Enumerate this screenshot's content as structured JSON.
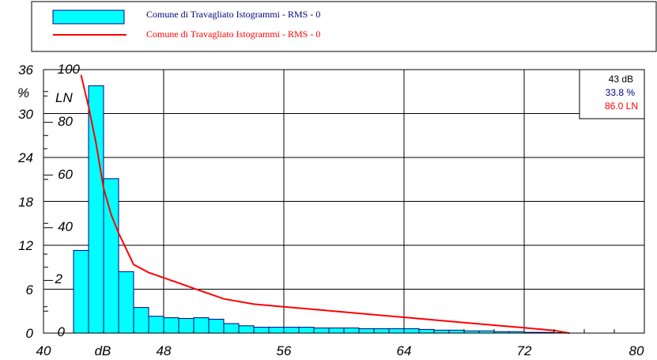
{
  "legend": {
    "items": [
      {
        "label": "Comune di Travagliato Istogrammi  - RMS - 0",
        "color": "#000080",
        "symbol": "bar"
      },
      {
        "label": "Comune di Travagliato Istogrammi  - RMS - 0",
        "color": "#ff0000",
        "symbol": "line"
      }
    ]
  },
  "colors": {
    "bar_fill": "#00ffff",
    "line": "#ff0000",
    "percent_text": "#000080",
    "ln_text": "#ff0000"
  },
  "readout": {
    "db": "43 dB",
    "percent": "33.8 %",
    "ln": "86.0 LN"
  },
  "axes": {
    "x_unit": "dB",
    "y_left_unit": "%",
    "y_inner_unit": "LN",
    "x_ticks": [
      "40",
      "48",
      "56",
      "64",
      "72",
      "80"
    ],
    "y_ticks": [
      "0",
      "6",
      "12",
      "18",
      "24",
      "30",
      "36"
    ],
    "ln_ticks": [
      "0",
      "2",
      "40",
      "60",
      "80",
      "100"
    ]
  },
  "chart_data": {
    "type": "bar",
    "xlabel": "dB",
    "ylabel": "%",
    "xlim": [
      40,
      80
    ],
    "ylim": [
      0,
      36
    ],
    "y2lim": [
      0,
      100
    ],
    "grid": true,
    "legend_position": "top",
    "series": [
      {
        "name": "Comune di Travagliato Istogrammi  - RMS - 0",
        "type": "bar",
        "bin_width": 1,
        "x": [
          42,
          43,
          44,
          45,
          46,
          47,
          48,
          49,
          50,
          51,
          52,
          53,
          54,
          55,
          56,
          57,
          58,
          59,
          60,
          61,
          62,
          63,
          64,
          65,
          66,
          67,
          68,
          69,
          70,
          71,
          72,
          73,
          74
        ],
        "values": [
          11.3,
          33.8,
          21.1,
          8.4,
          3.5,
          2.3,
          2.1,
          2.0,
          2.1,
          1.9,
          1.3,
          1.0,
          0.8,
          0.8,
          0.8,
          0.8,
          0.7,
          0.7,
          0.7,
          0.6,
          0.6,
          0.6,
          0.6,
          0.5,
          0.4,
          0.4,
          0.3,
          0.3,
          0.2,
          0.2,
          0.1,
          0.1,
          0.05
        ]
      },
      {
        "name": "Comune di Travagliato Istogrammi  - RMS - 0",
        "type": "line",
        "axis": "LN",
        "x": [
          42.5,
          43,
          43.5,
          44,
          44.5,
          45,
          45.5,
          46,
          47,
          48,
          49,
          50,
          52,
          54,
          56,
          58,
          60,
          62,
          64,
          66,
          68,
          70,
          72,
          74,
          75
        ],
        "values": [
          98,
          86,
          72,
          55,
          45,
          38,
          32,
          26,
          23,
          21,
          19,
          17,
          13,
          11,
          10,
          9,
          8,
          7,
          6,
          5,
          4,
          3,
          2,
          1,
          0
        ]
      }
    ]
  }
}
